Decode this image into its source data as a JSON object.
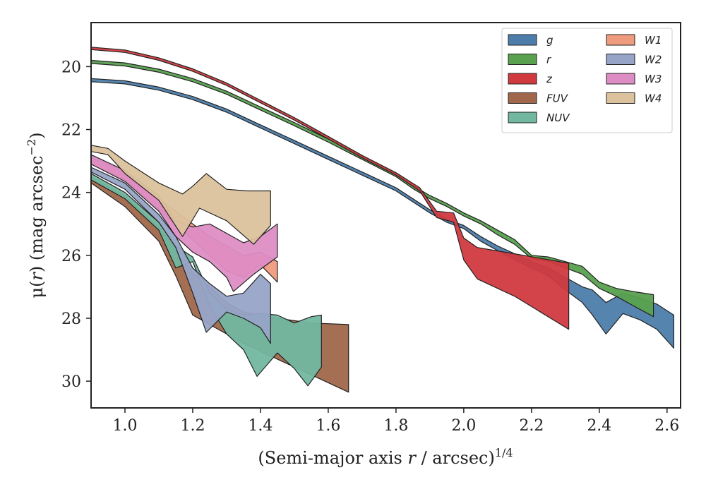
{
  "chart_data": {
    "type": "area",
    "xlabel": "(Semi-major axis r / arcsec)^1/4",
    "xlabel_parts": {
      "pre": "(Semi-major axis ",
      "var": "r",
      "post": " / arcsec)",
      "sup": "1/4"
    },
    "ylabel": "μ(r) (mag arcsec^−2)",
    "ylabel_parts": {
      "pre": "μ(",
      "var": "r",
      "post": ") (mag arcsec",
      "sup": "−2",
      "end": ")"
    },
    "xlim": [
      0.9,
      2.64
    ],
    "ylim": [
      30.85,
      18.6
    ],
    "y_inverted": true,
    "xticks": [
      "1.0",
      "1.2",
      "1.4",
      "1.6",
      "1.8",
      "2.0",
      "2.2",
      "2.4",
      "2.6"
    ],
    "xtick_values": [
      1.0,
      1.2,
      1.4,
      1.6,
      1.8,
      2.0,
      2.2,
      2.4,
      2.6
    ],
    "yticks": [
      "20",
      "22",
      "24",
      "26",
      "28",
      "30"
    ],
    "ytick_values": [
      20,
      22,
      24,
      26,
      28,
      30
    ],
    "grid": false,
    "legend_position": "top-right",
    "legend_columns": 2,
    "series": [
      {
        "name": "g",
        "color": "#4c7dab",
        "upper": [
          [
            0.9,
            20.38
          ],
          [
            1.0,
            20.45
          ],
          [
            1.1,
            20.65
          ],
          [
            1.2,
            20.95
          ],
          [
            1.3,
            21.35
          ],
          [
            1.4,
            21.85
          ],
          [
            1.5,
            22.35
          ],
          [
            1.6,
            22.85
          ],
          [
            1.7,
            23.35
          ],
          [
            1.8,
            23.85
          ],
          [
            1.85,
            24.2
          ],
          [
            1.9,
            24.55
          ],
          [
            1.95,
            24.85
          ],
          [
            2.0,
            25.05
          ],
          [
            2.05,
            25.4
          ],
          [
            2.1,
            25.7
          ],
          [
            2.15,
            25.95
          ],
          [
            2.2,
            26.2
          ],
          [
            2.25,
            26.4
          ],
          [
            2.3,
            26.7
          ],
          [
            2.35,
            27.0
          ],
          [
            2.38,
            27.1
          ],
          [
            2.42,
            27.5
          ],
          [
            2.47,
            27.2
          ],
          [
            2.52,
            27.35
          ],
          [
            2.57,
            27.55
          ],
          [
            2.62,
            27.9
          ]
        ],
        "lower": [
          [
            0.9,
            20.48
          ],
          [
            1.0,
            20.55
          ],
          [
            1.1,
            20.75
          ],
          [
            1.2,
            21.05
          ],
          [
            1.3,
            21.45
          ],
          [
            1.4,
            21.95
          ],
          [
            1.5,
            22.45
          ],
          [
            1.6,
            22.95
          ],
          [
            1.7,
            23.45
          ],
          [
            1.8,
            23.95
          ],
          [
            1.85,
            24.3
          ],
          [
            1.9,
            24.65
          ],
          [
            1.95,
            24.95
          ],
          [
            2.0,
            25.15
          ],
          [
            2.05,
            25.55
          ],
          [
            2.1,
            25.85
          ],
          [
            2.15,
            26.15
          ],
          [
            2.2,
            26.4
          ],
          [
            2.25,
            26.65
          ],
          [
            2.3,
            27.1
          ],
          [
            2.35,
            27.5
          ],
          [
            2.38,
            27.9
          ],
          [
            2.42,
            28.5
          ],
          [
            2.47,
            27.85
          ],
          [
            2.52,
            28.05
          ],
          [
            2.57,
            28.35
          ],
          [
            2.62,
            28.95
          ]
        ]
      },
      {
        "name": "r",
        "color": "#59a14f",
        "upper": [
          [
            0.9,
            19.8
          ],
          [
            1.0,
            19.88
          ],
          [
            1.1,
            20.08
          ],
          [
            1.2,
            20.38
          ],
          [
            1.3,
            20.78
          ],
          [
            1.4,
            21.28
          ],
          [
            1.5,
            21.78
          ],
          [
            1.6,
            22.3
          ],
          [
            1.7,
            22.85
          ],
          [
            1.8,
            23.4
          ],
          [
            1.85,
            23.78
          ],
          [
            1.9,
            24.1
          ],
          [
            1.95,
            24.35
          ],
          [
            2.0,
            24.65
          ],
          [
            2.05,
            24.9
          ],
          [
            2.1,
            25.2
          ],
          [
            2.15,
            25.5
          ],
          [
            2.2,
            26.0
          ],
          [
            2.25,
            26.05
          ],
          [
            2.3,
            26.2
          ],
          [
            2.35,
            26.35
          ],
          [
            2.4,
            26.85
          ],
          [
            2.45,
            27.05
          ],
          [
            2.5,
            27.15
          ],
          [
            2.56,
            27.25
          ]
        ],
        "lower": [
          [
            0.9,
            19.9
          ],
          [
            1.0,
            19.98
          ],
          [
            1.1,
            20.18
          ],
          [
            1.2,
            20.48
          ],
          [
            1.3,
            20.88
          ],
          [
            1.4,
            21.38
          ],
          [
            1.5,
            21.88
          ],
          [
            1.6,
            22.4
          ],
          [
            1.7,
            22.95
          ],
          [
            1.8,
            23.5
          ],
          [
            1.85,
            23.88
          ],
          [
            1.9,
            24.2
          ],
          [
            1.95,
            24.45
          ],
          [
            2.0,
            24.75
          ],
          [
            2.05,
            25.0
          ],
          [
            2.1,
            25.35
          ],
          [
            2.15,
            25.65
          ],
          [
            2.2,
            26.1
          ],
          [
            2.25,
            26.2
          ],
          [
            2.3,
            26.4
          ],
          [
            2.35,
            26.6
          ],
          [
            2.4,
            27.05
          ],
          [
            2.45,
            27.3
          ],
          [
            2.5,
            27.6
          ],
          [
            2.56,
            27.95
          ]
        ]
      },
      {
        "name": "z",
        "color": "#d03a3f",
        "upper": [
          [
            0.9,
            19.38
          ],
          [
            1.0,
            19.47
          ],
          [
            1.1,
            19.72
          ],
          [
            1.2,
            20.07
          ],
          [
            1.3,
            20.52
          ],
          [
            1.4,
            21.07
          ],
          [
            1.5,
            21.62
          ],
          [
            1.6,
            22.22
          ],
          [
            1.7,
            22.82
          ],
          [
            1.8,
            23.37
          ],
          [
            1.87,
            23.85
          ],
          [
            1.92,
            24.6
          ],
          [
            1.97,
            24.65
          ],
          [
            2.0,
            25.45
          ],
          [
            2.04,
            25.75
          ],
          [
            2.15,
            25.95
          ],
          [
            2.31,
            26.25
          ]
        ],
        "lower": [
          [
            0.9,
            19.46
          ],
          [
            1.0,
            19.55
          ],
          [
            1.1,
            19.8
          ],
          [
            1.2,
            20.15
          ],
          [
            1.3,
            20.6
          ],
          [
            1.4,
            21.15
          ],
          [
            1.5,
            21.7
          ],
          [
            1.6,
            22.3
          ],
          [
            1.7,
            22.9
          ],
          [
            1.8,
            23.45
          ],
          [
            1.87,
            23.95
          ],
          [
            1.92,
            24.8
          ],
          [
            1.97,
            24.95
          ],
          [
            2.0,
            26.15
          ],
          [
            2.04,
            26.75
          ],
          [
            2.15,
            27.3
          ],
          [
            2.31,
            28.35
          ]
        ]
      },
      {
        "name": "FUV",
        "color": "#a0674a",
        "upper": [
          [
            0.9,
            23.5
          ],
          [
            1.0,
            24.1
          ],
          [
            1.1,
            25.1
          ],
          [
            1.15,
            25.8
          ],
          [
            1.2,
            26.55
          ],
          [
            1.25,
            27.0
          ],
          [
            1.3,
            27.5
          ],
          [
            1.35,
            27.8
          ],
          [
            1.45,
            28.0
          ],
          [
            1.55,
            28.15
          ],
          [
            1.66,
            28.2
          ]
        ],
        "lower": [
          [
            0.9,
            23.7
          ],
          [
            1.0,
            24.45
          ],
          [
            1.1,
            25.55
          ],
          [
            1.15,
            26.65
          ],
          [
            1.2,
            27.9
          ],
          [
            1.25,
            28.2
          ],
          [
            1.35,
            28.8
          ],
          [
            1.45,
            29.3
          ],
          [
            1.55,
            29.8
          ],
          [
            1.66,
            30.35
          ]
        ]
      },
      {
        "name": "NUV",
        "color": "#72b7a0",
        "upper": [
          [
            0.9,
            23.4
          ],
          [
            1.0,
            24.0
          ],
          [
            1.1,
            24.95
          ],
          [
            1.15,
            25.7
          ],
          [
            1.2,
            26.05
          ],
          [
            1.25,
            27.2
          ],
          [
            1.3,
            27.7
          ],
          [
            1.35,
            27.9
          ],
          [
            1.4,
            27.85
          ],
          [
            1.45,
            27.9
          ],
          [
            1.5,
            28.15
          ],
          [
            1.55,
            27.95
          ],
          [
            1.58,
            27.9
          ]
        ],
        "lower": [
          [
            0.9,
            23.6
          ],
          [
            1.0,
            24.2
          ],
          [
            1.1,
            25.2
          ],
          [
            1.15,
            26.4
          ],
          [
            1.2,
            26.2
          ],
          [
            1.25,
            27.6
          ],
          [
            1.3,
            28.5
          ],
          [
            1.35,
            29.0
          ],
          [
            1.39,
            29.85
          ],
          [
            1.45,
            29.1
          ],
          [
            1.5,
            29.6
          ],
          [
            1.54,
            30.15
          ],
          [
            1.58,
            29.55
          ]
        ]
      },
      {
        "name": "W1",
        "color": "#ef9b7e",
        "upper": [
          [
            0.9,
            22.9
          ],
          [
            1.0,
            23.3
          ],
          [
            1.1,
            24.2
          ],
          [
            1.2,
            25.0
          ],
          [
            1.25,
            25.4
          ],
          [
            1.3,
            25.7
          ],
          [
            1.35,
            26.0
          ],
          [
            1.4,
            25.9
          ],
          [
            1.45,
            26.2
          ]
        ],
        "lower": [
          [
            0.9,
            23.1
          ],
          [
            1.0,
            23.6
          ],
          [
            1.1,
            24.55
          ],
          [
            1.2,
            25.5
          ],
          [
            1.25,
            26.0
          ],
          [
            1.3,
            26.5
          ],
          [
            1.35,
            26.7
          ],
          [
            1.4,
            26.3
          ],
          [
            1.45,
            26.85
          ]
        ]
      },
      {
        "name": "W2",
        "color": "#97a4c8",
        "upper": [
          [
            0.9,
            23.2
          ],
          [
            1.0,
            23.7
          ],
          [
            1.1,
            24.7
          ],
          [
            1.15,
            25.4
          ],
          [
            1.2,
            26.4
          ],
          [
            1.25,
            26.9
          ],
          [
            1.3,
            27.3
          ],
          [
            1.35,
            27.2
          ],
          [
            1.4,
            26.6
          ],
          [
            1.43,
            26.9
          ]
        ],
        "lower": [
          [
            0.9,
            23.35
          ],
          [
            1.0,
            23.9
          ],
          [
            1.1,
            24.95
          ],
          [
            1.15,
            25.75
          ],
          [
            1.2,
            27.2
          ],
          [
            1.24,
            28.45
          ],
          [
            1.3,
            27.8
          ],
          [
            1.35,
            28.0
          ],
          [
            1.4,
            28.3
          ],
          [
            1.43,
            28.8
          ]
        ]
      },
      {
        "name": "W3",
        "color": "#de8dc4",
        "upper": [
          [
            0.9,
            22.8
          ],
          [
            1.0,
            23.3
          ],
          [
            1.1,
            24.1
          ],
          [
            1.15,
            24.9
          ],
          [
            1.2,
            25.1
          ],
          [
            1.25,
            25.0
          ],
          [
            1.3,
            25.3
          ],
          [
            1.35,
            25.6
          ],
          [
            1.4,
            25.4
          ],
          [
            1.45,
            25.0
          ]
        ],
        "lower": [
          [
            0.9,
            23.1
          ],
          [
            1.0,
            23.65
          ],
          [
            1.1,
            24.6
          ],
          [
            1.15,
            25.4
          ],
          [
            1.2,
            25.9
          ],
          [
            1.25,
            26.2
          ],
          [
            1.3,
            26.7
          ],
          [
            1.32,
            27.15
          ],
          [
            1.38,
            26.6
          ],
          [
            1.45,
            26.05
          ]
        ]
      },
      {
        "name": "W4",
        "color": "#dcc29c",
        "upper": [
          [
            0.9,
            22.5
          ],
          [
            0.95,
            22.6
          ],
          [
            1.0,
            23.0
          ],
          [
            1.1,
            23.7
          ],
          [
            1.17,
            24.05
          ],
          [
            1.2,
            23.8
          ],
          [
            1.24,
            23.4
          ],
          [
            1.3,
            23.9
          ],
          [
            1.36,
            23.95
          ],
          [
            1.43,
            23.95
          ]
        ],
        "lower": [
          [
            0.9,
            22.7
          ],
          [
            0.95,
            22.8
          ],
          [
            1.0,
            23.4
          ],
          [
            1.1,
            24.25
          ],
          [
            1.17,
            25.4
          ],
          [
            1.22,
            24.5
          ],
          [
            1.3,
            24.9
          ],
          [
            1.38,
            25.65
          ],
          [
            1.43,
            25.05
          ]
        ]
      }
    ]
  }
}
